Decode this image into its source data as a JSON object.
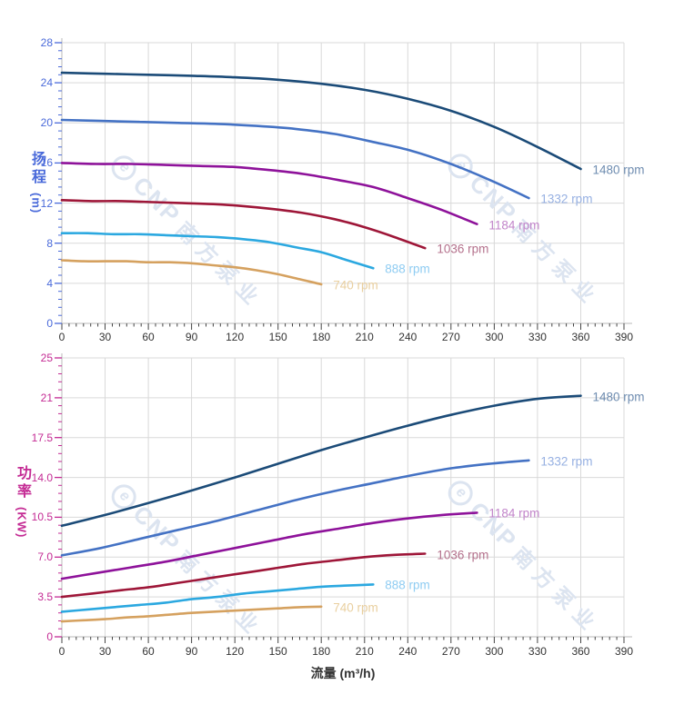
{
  "page": {
    "background": "#ffffff"
  },
  "watermark": {
    "logo_glyph": "e",
    "brand": "CNP",
    "brand_cn": "南方泵业",
    "color": "#dce4f0"
  },
  "axis_style": {
    "x_tick_color": "#444444",
    "x_label_color": "#333333",
    "grid_color": "#d9d9d9",
    "axis_line_color": "#c6c6c6"
  },
  "chart_data": [
    {
      "type": "line",
      "title": "",
      "ylabel_cn": "扬程",
      "ylabel_unit": "(m)",
      "xlabel": "",
      "axis_color": "#4a6ada",
      "xlim": [
        0,
        390
      ],
      "ylim": [
        0,
        28
      ],
      "grid": true,
      "x_ticks": [
        0,
        30,
        60,
        90,
        120,
        150,
        180,
        210,
        240,
        270,
        300,
        330,
        360,
        390
      ],
      "y_tick_labels": [
        "0",
        "4",
        "8",
        "12",
        "16",
        "20",
        "24",
        "28"
      ],
      "y_tick_values": [
        0,
        4,
        8,
        12,
        16,
        20,
        24,
        28
      ],
      "legend_position": "end-of-line",
      "series": [
        {
          "name": "1480 rpm",
          "color": "#1b4b78",
          "label_color": "#6e8cb0",
          "x": [
            0,
            30,
            60,
            90,
            120,
            150,
            180,
            210,
            240,
            270,
            300,
            330,
            360
          ],
          "y": [
            25.0,
            24.9,
            24.8,
            24.7,
            24.55,
            24.3,
            23.9,
            23.3,
            22.4,
            21.2,
            19.6,
            17.6,
            15.4
          ]
        },
        {
          "name": "1332 rpm",
          "color": "#4472c4",
          "label_color": "#96b0e2",
          "x": [
            0,
            27,
            54,
            81,
            108,
            135,
            162,
            189,
            216,
            243,
            270,
            297,
            324
          ],
          "y": [
            20.3,
            20.2,
            20.1,
            20.0,
            19.9,
            19.7,
            19.4,
            18.9,
            18.1,
            17.2,
            15.9,
            14.3,
            12.5
          ]
        },
        {
          "name": "1184 rpm",
          "color": "#8e129a",
          "label_color": "#c285ca",
          "x": [
            0,
            24,
            48,
            72,
            96,
            120,
            144,
            168,
            192,
            216,
            240,
            264,
            288
          ],
          "y": [
            16.0,
            15.9,
            15.9,
            15.8,
            15.7,
            15.6,
            15.3,
            14.9,
            14.3,
            13.6,
            12.5,
            11.3,
            9.9
          ]
        },
        {
          "name": "1036 rpm",
          "color": "#9e1638",
          "label_color": "#b4718c",
          "x": [
            0,
            21,
            42,
            63,
            84,
            105,
            126,
            147,
            168,
            189,
            210,
            231,
            252
          ],
          "y": [
            12.3,
            12.2,
            12.2,
            12.1,
            12.0,
            11.9,
            11.7,
            11.4,
            11.0,
            10.4,
            9.6,
            8.6,
            7.5
          ]
        },
        {
          "name": "888 rpm",
          "color": "#2ba8e0",
          "label_color": "#8fccf2",
          "x": [
            0,
            18,
            36,
            54,
            72,
            90,
            108,
            126,
            144,
            162,
            180,
            198,
            216
          ],
          "y": [
            9.0,
            9.0,
            8.9,
            8.9,
            8.8,
            8.7,
            8.6,
            8.4,
            8.1,
            7.6,
            7.1,
            6.3,
            5.5
          ]
        },
        {
          "name": "740 rpm",
          "color": "#d5a15f",
          "label_color": "#e9cf9f",
          "x": [
            0,
            15,
            30,
            45,
            60,
            75,
            90,
            105,
            120,
            135,
            150,
            165,
            180
          ],
          "y": [
            6.3,
            6.2,
            6.2,
            6.2,
            6.1,
            6.1,
            6.0,
            5.8,
            5.6,
            5.3,
            4.9,
            4.4,
            3.9
          ]
        }
      ]
    },
    {
      "type": "line",
      "title": "",
      "ylabel_cn": "功率",
      "ylabel_unit": "(KW)",
      "xlabel": "流量 (m³/h)",
      "axis_color": "#c42b94",
      "xlim": [
        0,
        390
      ],
      "ylim": [
        0,
        25
      ],
      "grid": true,
      "x_ticks": [
        0,
        30,
        60,
        90,
        120,
        150,
        180,
        210,
        240,
        270,
        300,
        330,
        360,
        390
      ],
      "y_tick_labels": [
        "0",
        "3.5",
        "7.0",
        "10.5",
        "14.0",
        "17.5",
        "21",
        "25"
      ],
      "y_tick_values": [
        0,
        3.5,
        7,
        10.5,
        14,
        17.5,
        21,
        25
      ],
      "legend_position": "end-of-line",
      "series": [
        {
          "name": "1480 rpm",
          "color": "#1b4b78",
          "label_color": "#6e8cb0",
          "x": [
            0,
            30,
            60,
            90,
            120,
            150,
            180,
            210,
            240,
            270,
            300,
            330,
            360
          ],
          "y": [
            9.75,
            10.7,
            11.75,
            12.85,
            14.0,
            15.2,
            16.4,
            17.5,
            18.55,
            19.5,
            20.3,
            20.9,
            21.2
          ]
        },
        {
          "name": "1332 rpm",
          "color": "#4472c4",
          "label_color": "#96b0e2",
          "x": [
            0,
            27,
            54,
            81,
            108,
            135,
            162,
            189,
            216,
            243,
            270,
            297,
            324
          ],
          "y": [
            7.15,
            7.8,
            8.6,
            9.4,
            10.2,
            11.1,
            12.0,
            12.8,
            13.5,
            14.2,
            14.8,
            15.2,
            15.5
          ]
        },
        {
          "name": "1184 rpm",
          "color": "#8e129a",
          "label_color": "#c285ca",
          "x": [
            0,
            24,
            48,
            72,
            96,
            120,
            144,
            168,
            192,
            216,
            240,
            264,
            288
          ],
          "y": [
            5.1,
            5.6,
            6.1,
            6.6,
            7.2,
            7.8,
            8.4,
            9.0,
            9.5,
            10.0,
            10.4,
            10.7,
            10.9
          ]
        },
        {
          "name": "1036 rpm",
          "color": "#9e1638",
          "label_color": "#b4718c",
          "x": [
            0,
            21,
            42,
            63,
            84,
            105,
            126,
            147,
            168,
            189,
            210,
            231,
            252
          ],
          "y": [
            3.5,
            3.8,
            4.1,
            4.4,
            4.8,
            5.2,
            5.6,
            6.0,
            6.4,
            6.7,
            7.0,
            7.2,
            7.3
          ]
        },
        {
          "name": "888 rpm",
          "color": "#2ba8e0",
          "label_color": "#8fccf2",
          "x": [
            0,
            18,
            36,
            54,
            72,
            90,
            108,
            126,
            144,
            162,
            180,
            198,
            216
          ],
          "y": [
            2.2,
            2.4,
            2.6,
            2.8,
            3.0,
            3.3,
            3.5,
            3.8,
            4.0,
            4.2,
            4.4,
            4.5,
            4.6
          ]
        },
        {
          "name": "740 rpm",
          "color": "#d5a15f",
          "label_color": "#e9cf9f",
          "x": [
            0,
            15,
            30,
            45,
            60,
            75,
            90,
            105,
            120,
            135,
            150,
            165,
            180
          ],
          "y": [
            1.35,
            1.45,
            1.55,
            1.7,
            1.8,
            1.95,
            2.1,
            2.2,
            2.3,
            2.4,
            2.5,
            2.6,
            2.65
          ]
        }
      ]
    }
  ]
}
